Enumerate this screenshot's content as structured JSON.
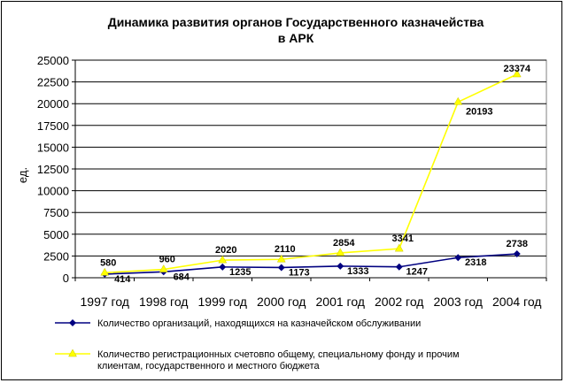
{
  "chart_data": {
    "type": "line",
    "title_lines": [
      "Динамика развития органов Государственного казначейства",
      "в АРК"
    ],
    "ylabel": "ед.",
    "xlabel": "",
    "ylim": [
      0,
      25000
    ],
    "yticks": [
      0,
      2500,
      5000,
      7500,
      10000,
      12500,
      15000,
      17500,
      20000,
      22500,
      25000
    ],
    "categories": [
      "1997 год",
      "1998 год",
      "1999 год",
      "2000 год",
      "2001 год",
      "2002 год",
      "2003 год",
      "2004 год"
    ],
    "grid": "horizontal",
    "legend_position": "bottom",
    "series": [
      {
        "name": "Количество организаций, находящихся на казначейском обслуживании",
        "values": [
          414,
          684,
          1235,
          1173,
          1333,
          1247,
          2318,
          2738
        ],
        "color": "#000080",
        "marker": "diamond"
      },
      {
        "name": "Количество регистрационных счетовпо общему, специальному фонду и прочим клиентам, государственного и местного бюджета",
        "legend_lines": [
          "Количество регистрационных счетовпо общему, специальному фонду и прочим",
          "клиентам, государственного и местного бюджета"
        ],
        "values": [
          580,
          960,
          2020,
          2110,
          2854,
          3341,
          20193,
          23374
        ],
        "color": "#ffff00",
        "marker": "triangle"
      }
    ]
  }
}
